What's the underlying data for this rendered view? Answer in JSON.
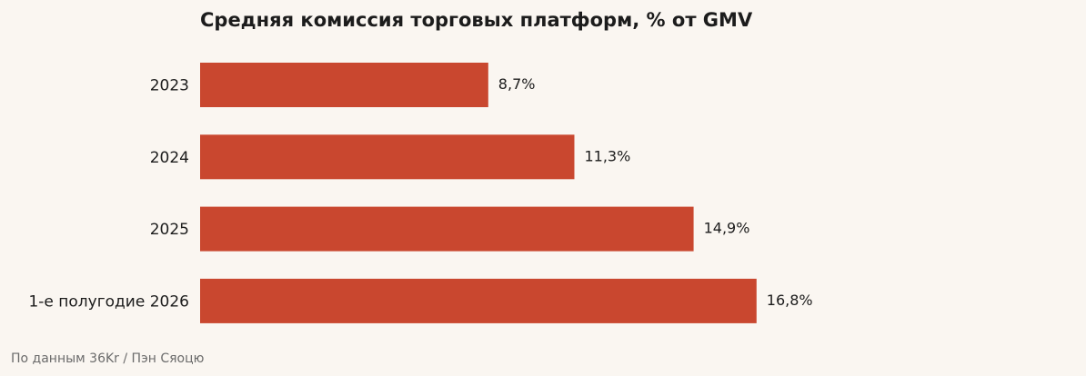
{
  "chart_data": {
    "type": "bar",
    "orientation": "horizontal",
    "title": "Средняя комиссия торговых платформ, % от GMV",
    "categories": [
      "2023",
      "2024",
      "2025",
      "1-е полугодие 2026"
    ],
    "values": [
      8.7,
      11.3,
      14.9,
      16.8
    ],
    "value_labels": [
      "8,7%",
      "11,3%",
      "14,9%",
      "16,8%"
    ],
    "xlim": [
      0,
      26.5
    ],
    "grid": false,
    "bar_color": "#c9472f"
  },
  "source": "По данным 36Kr / Пэн Сяоцю"
}
